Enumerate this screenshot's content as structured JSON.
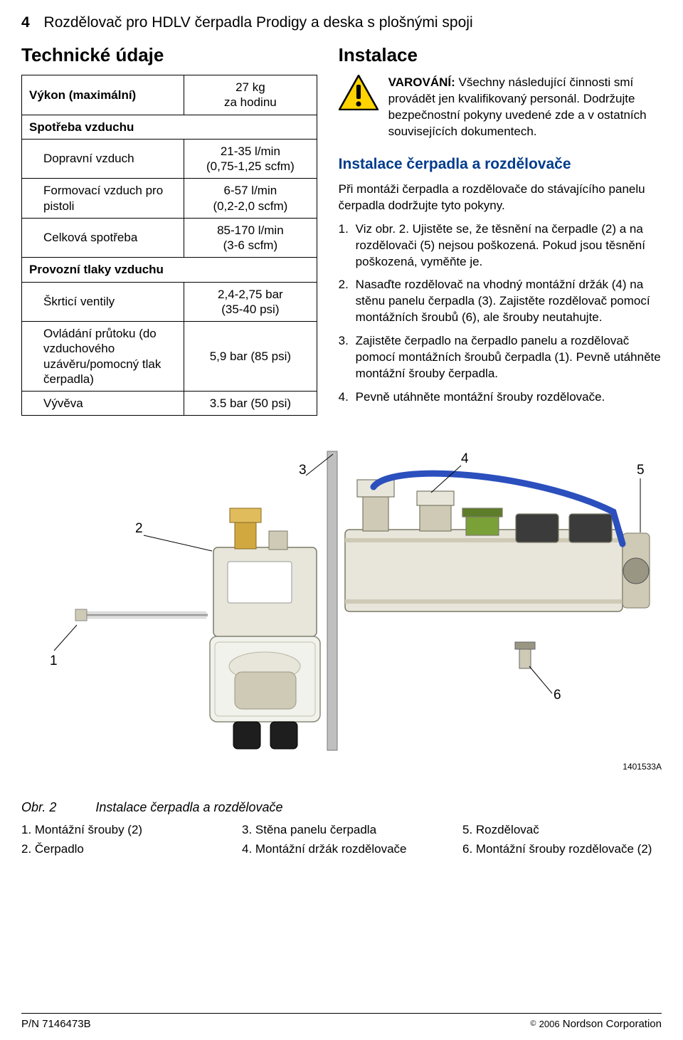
{
  "page_number": "4",
  "doc_title": "Rozdělovač pro HDLV čerpadla Prodigy a deska s plošnými spoji",
  "left": {
    "heading": "Technické údaje",
    "rows": [
      {
        "label": "Výkon (maximální)",
        "value": "27 kg\nza hodinu",
        "bold": true,
        "indent": 0
      },
      {
        "label": "Spotřeba vzduchu",
        "value": "",
        "bold": true,
        "indent": 0
      },
      {
        "label": "Dopravní vzduch",
        "value": "21-35 l/min\n(0,75-1,25 scfm)",
        "bold": false,
        "indent": 1
      },
      {
        "label": "Formovací vzduch pro pistoli",
        "value": "6-57 l/min\n(0,2-2,0 scfm)",
        "bold": false,
        "indent": 1
      },
      {
        "label": "Celková spotřeba",
        "value": "85-170 l/min\n(3-6 scfm)",
        "bold": false,
        "indent": 1
      },
      {
        "label": "Provozní tlaky vzduchu",
        "value": "",
        "bold": true,
        "indent": 0
      },
      {
        "label": "Škrticí ventily",
        "value": "2,4-2,75 bar\n(35-40 psi)",
        "bold": false,
        "indent": 1
      },
      {
        "label": "Ovládání průtoku (do vzduchového uzávěru/pomocný tlak čerpadla)",
        "value": "5,9 bar (85 psi)",
        "bold": false,
        "indent": 1
      },
      {
        "label": "Vývěva",
        "value": "3.5 bar (50 psi)",
        "bold": false,
        "indent": 1
      }
    ]
  },
  "right": {
    "heading": "Instalace",
    "warning_label": "VAROVÁNÍ:",
    "warning_text": "Všechny následující činnosti smí provádět jen kvalifikovaný personál. Dodržujte bezpečnostní pokyny uvedené zde a v ostatních souvisejících dokumentech.",
    "subheading": "Instalace čerpadla a rozdělovače",
    "intro": "Při montáži čerpadla a rozdělovače do stávajícího panelu čerpadla dodržujte tyto pokyny.",
    "steps": [
      "Viz obr. 2.  Ujistěte se, že těsnění na čerpadle (2) a na rozdělovači (5) nejsou poškozená.  Pokud jsou těsnění poškozená, vyměňte je.",
      "Nasaďte rozdělovač na vhodný montážní držák (4) na stěnu panelu čerpadla (3).  Zajistěte rozdělovač pomocí montážních šroubů (6), ale šrouby neutahujte.",
      "Zajistěte čerpadlo na čerpadlo panelu a rozdělovač pomocí montážních šroubů čerpadla (1).  Pevně utáhněte montážní šrouby čerpadla.",
      "Pevně utáhněte montážní šrouby rozdělovače."
    ]
  },
  "figure": {
    "callouts": {
      "1": "1",
      "2": "2",
      "3": "3",
      "4": "4",
      "5": "5",
      "6": "6"
    },
    "code": "1401533A",
    "caption_ref": "Obr. 2",
    "caption_title": "Instalace čerpadla a rozdělovače",
    "legend": [
      [
        "1.  Montážní šrouby (2)",
        "2.  Čerpadlo"
      ],
      [
        "3.  Stěna panelu čerpadla",
        "4.  Montážní držák rozdělovače"
      ],
      [
        "5.  Rozdělovač",
        "6.  Montážní šrouby rozdělovače (2)"
      ]
    ]
  },
  "footer": {
    "pn": "P/N 7146473B",
    "year": "2006",
    "corp": "Nordson Corporation"
  },
  "colors": {
    "heading_blue": "#003b8e",
    "warn_yellow": "#ffd400",
    "warn_border": "#000000",
    "hose_blue": "#2b4fbd",
    "metal_light": "#e8e6db",
    "metal_mid": "#cfcab6",
    "metal_dark": "#9a9684",
    "brass": "#d1a740",
    "valve_green": "#7aa038",
    "panel_gray": "#bfbfbf"
  }
}
